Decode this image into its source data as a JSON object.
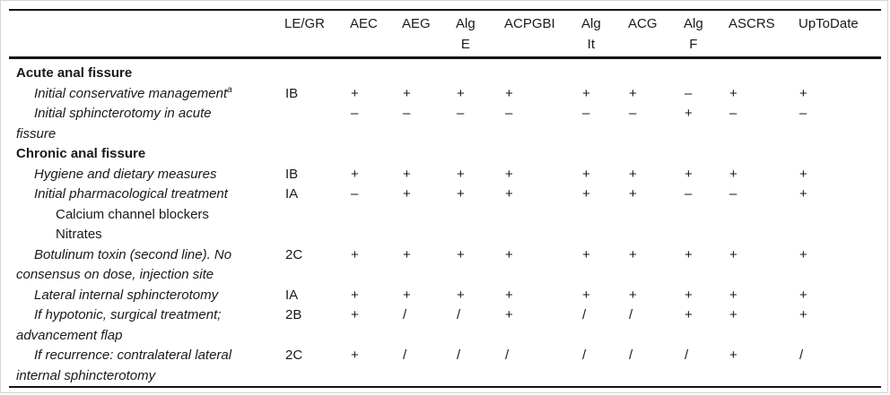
{
  "table": {
    "description": "Guideline recommendations comparison table for anal fissure management",
    "columns": [
      {
        "label": "LE/GR",
        "label2": ""
      },
      {
        "label": "AEC",
        "label2": ""
      },
      {
        "label": "AEG",
        "label2": ""
      },
      {
        "label": "Alg",
        "label2": "E"
      },
      {
        "label": "ACPGBI",
        "label2": ""
      },
      {
        "label": "Alg",
        "label2": "It"
      },
      {
        "label": "ACG",
        "label2": ""
      },
      {
        "label": "Alg",
        "label2": "F"
      },
      {
        "label": "ASCRS",
        "label2": ""
      },
      {
        "label": "UpToDate",
        "label2": ""
      }
    ],
    "symbols": {
      "recommended": "+",
      "not_recommended": "–",
      "not_addressed": "/"
    },
    "rows": [
      {
        "type": "section",
        "label": "Acute anal fissure"
      },
      {
        "type": "item",
        "label": "Initial conservative management",
        "superscript": "a",
        "legr": "IB",
        "values": [
          "+",
          "+",
          "+",
          "+",
          "+",
          "+",
          "–",
          "+",
          "+"
        ]
      },
      {
        "type": "item",
        "label": "Initial sphincterotomy in acute\nfissure",
        "legr": "",
        "values": [
          "–",
          "–",
          "–",
          "–",
          "–",
          "–",
          "+",
          "–",
          "–"
        ]
      },
      {
        "type": "section",
        "label": "Chronic anal fissure"
      },
      {
        "type": "item",
        "label": "Hygiene and dietary measures",
        "legr": "IB",
        "values": [
          "+",
          "+",
          "+",
          "+",
          "+",
          "+",
          "+",
          "+",
          "+"
        ]
      },
      {
        "type": "item",
        "label": "Initial pharmacological treatment",
        "legr": "IA",
        "values": [
          "–",
          "+",
          "+",
          "+",
          "+",
          "+",
          "–",
          "–",
          "+"
        ]
      },
      {
        "type": "subitem",
        "label": "Calcium channel blockers"
      },
      {
        "type": "subitem",
        "label": "Nitrates"
      },
      {
        "type": "item",
        "label": "Botulinum toxin (second line). No\nconsensus on dose, injection site",
        "legr": "2C",
        "values": [
          "+",
          "+",
          "+",
          "+",
          "+",
          "+",
          "+",
          "+",
          "+"
        ]
      },
      {
        "type": "item",
        "label": "Lateral internal sphincterotomy",
        "legr": "IA",
        "values": [
          "+",
          "+",
          "+",
          "+",
          "+",
          "+",
          "+",
          "+",
          "+"
        ]
      },
      {
        "type": "item",
        "label": "If hypotonic, surgical treatment;\nadvancement flap",
        "legr": "2B",
        "values": [
          "+",
          "/",
          "/",
          "+",
          "/",
          "/",
          "+",
          "+",
          "+"
        ]
      },
      {
        "type": "item",
        "label": "If recurrence: contralateral lateral\ninternal sphincterotomy",
        "legr": "2C",
        "values": [
          "+",
          "/",
          "/",
          "/",
          "/",
          "/",
          "/",
          "+",
          "/"
        ]
      }
    ]
  }
}
